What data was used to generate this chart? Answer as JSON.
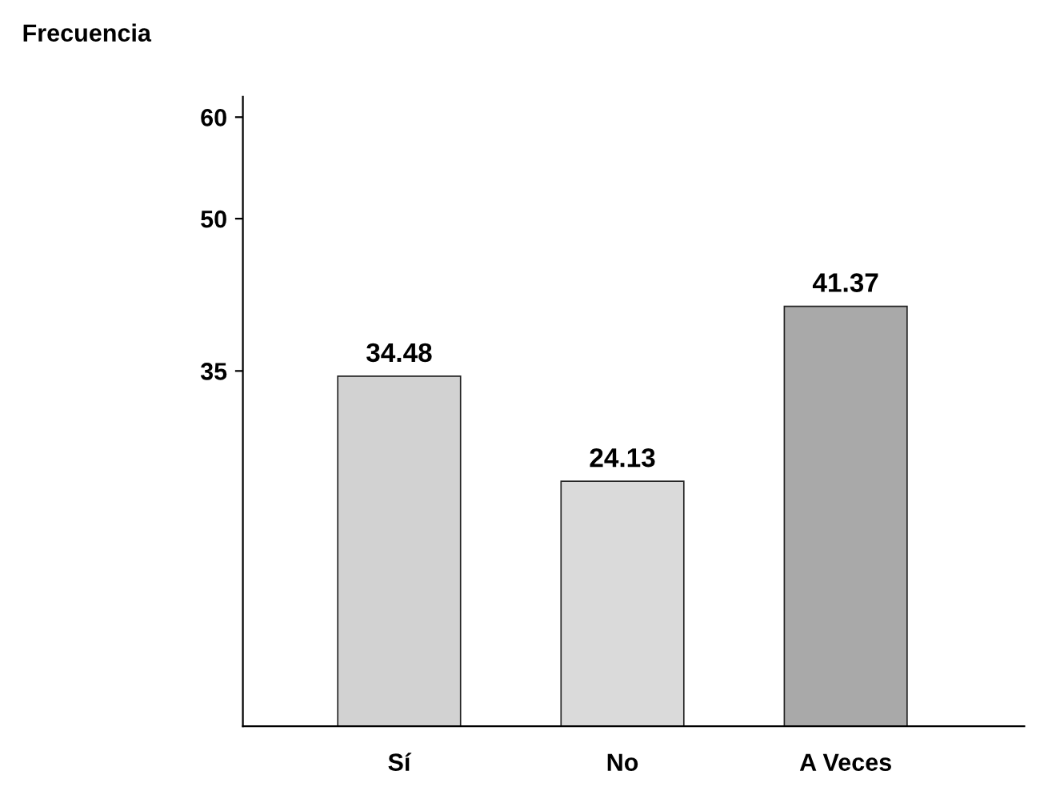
{
  "chart_data": {
    "type": "bar",
    "ylabel": "Frecuencia",
    "categories": [
      "Sí",
      "No",
      "A Veces"
    ],
    "values": [
      34.48,
      24.13,
      41.37
    ],
    "colors": [
      "#d2d2d2",
      "#dadada",
      "#a9a9a9"
    ],
    "ylim": [
      0,
      62
    ],
    "yticks": [
      35,
      50,
      60
    ],
    "data_labels": true,
    "grid": false,
    "legend": false
  }
}
